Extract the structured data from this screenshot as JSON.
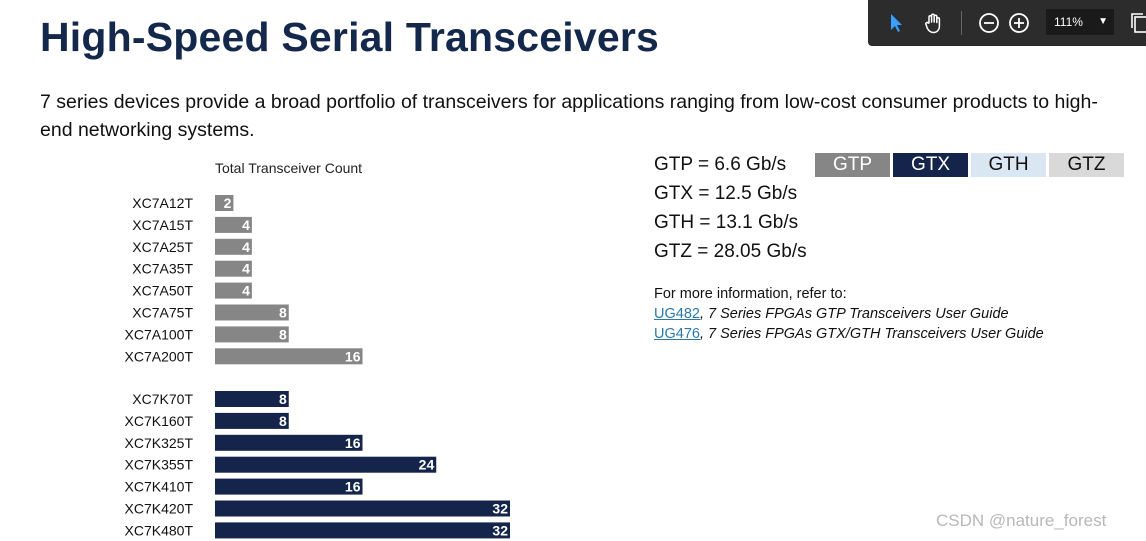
{
  "title": "High-Speed Serial Transceivers",
  "subtitle": "7 series devices provide a broad portfolio of transceivers for applications ranging from low-cost consumer products to high-end networking systems.",
  "speeds": [
    "GTP = 6.6 Gb/s",
    "GTX = 12.5 Gb/s",
    "GTH = 13.1 Gb/s",
    "GTZ = 28.05 Gb/s"
  ],
  "legend": [
    {
      "label": "GTP",
      "bg": "#868686",
      "fg": "#ffffff"
    },
    {
      "label": "GTX",
      "bg": "#14244a",
      "fg": "#ffffff"
    },
    {
      "label": "GTH",
      "bg": "#dbe6f3",
      "fg": "#111111"
    },
    {
      "label": "GTZ",
      "bg": "#d9d9d9",
      "fg": "#111111"
    }
  ],
  "info": {
    "intro": "For more information, refer to:",
    "links": [
      {
        "link": "UG482",
        "text": ", 7 Series FPGAs GTP Transceivers User Guide"
      },
      {
        "link": "UG476",
        "text": ", 7 Series FPGAs GTX/GTH Transceivers User Guide"
      }
    ]
  },
  "toolbar": {
    "zoom": "111%"
  },
  "watermark": "CSDN @nature_forest",
  "chart_data": {
    "type": "bar",
    "orientation": "horizontal",
    "title": "Total Transceiver Count",
    "xlim": [
      0,
      32
    ],
    "groups": [
      {
        "name": "GTP",
        "color": "#868686",
        "categories": [
          "XC7A12T",
          "XC7A15T",
          "XC7A25T",
          "XC7A35T",
          "XC7A50T",
          "XC7A75T",
          "XC7A100T",
          "XC7A200T"
        ],
        "values": [
          2,
          4,
          4,
          4,
          4,
          8,
          8,
          16
        ]
      },
      {
        "name": "GTX",
        "color": "#14244a",
        "categories": [
          "XC7K70T",
          "XC7K160T",
          "XC7K325T",
          "XC7K355T",
          "XC7K410T",
          "XC7K420T",
          "XC7K480T"
        ],
        "values": [
          8,
          8,
          16,
          24,
          16,
          32,
          32
        ]
      }
    ]
  }
}
